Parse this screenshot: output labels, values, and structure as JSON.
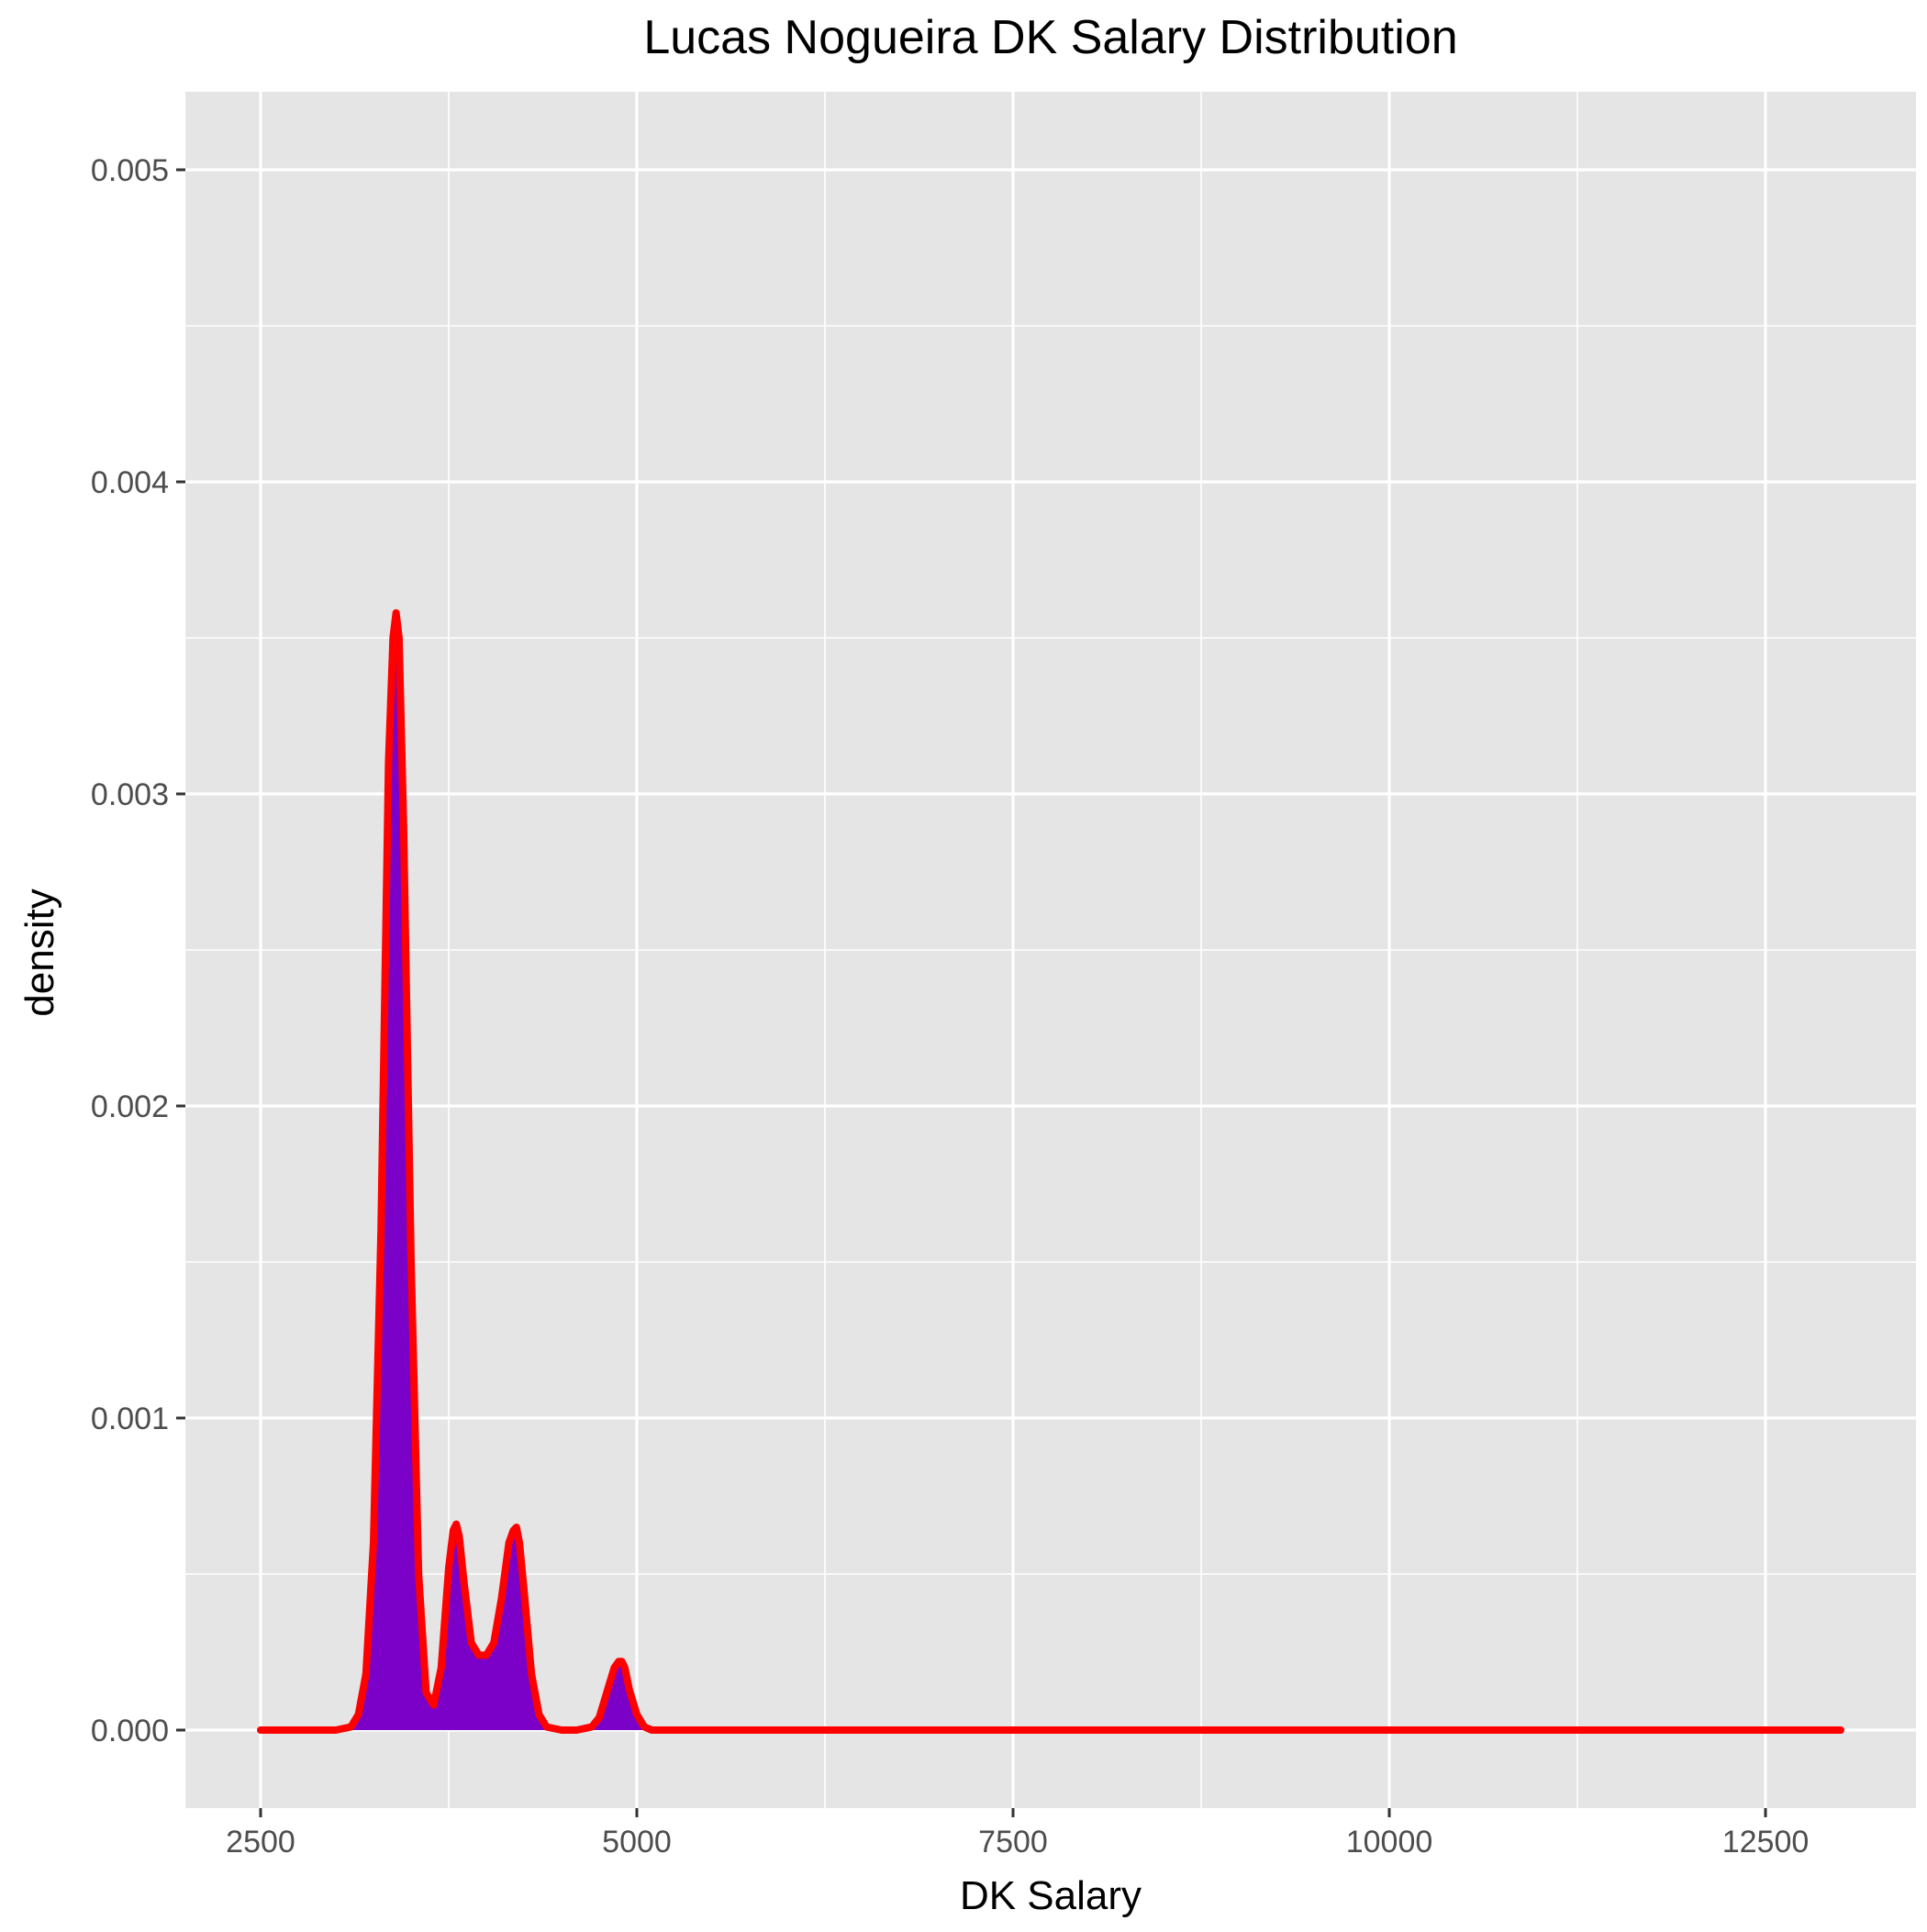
{
  "chart_data": {
    "type": "area",
    "title": "Lucas Nogueira DK Salary Distribution",
    "xlabel": "DK Salary",
    "ylabel": "density",
    "xlim": [
      2000,
      13500
    ],
    "ylim": [
      -0.00025,
      0.00525
    ],
    "x_ticks": [
      2500,
      5000,
      7500,
      10000,
      12500
    ],
    "x_tick_labels": [
      "2500",
      "5000",
      "7500",
      "10000",
      "12500"
    ],
    "y_ticks": [
      0.0,
      0.001,
      0.002,
      0.003,
      0.004,
      0.005
    ],
    "y_tick_labels": [
      "0.000",
      "0.001",
      "0.002",
      "0.003",
      "0.004",
      "0.005"
    ],
    "grid": true,
    "series": [
      {
        "x": [
          2500,
          3000,
          3100,
          3150,
          3200,
          3250,
          3300,
          3350,
          3380,
          3400,
          3420,
          3450,
          3500,
          3550,
          3600,
          3650,
          3700,
          3750,
          3780,
          3800,
          3820,
          3850,
          3900,
          3950,
          4000,
          4050,
          4100,
          4150,
          4180,
          4200,
          4220,
          4250,
          4300,
          4350,
          4400,
          4500,
          4600,
          4700,
          4750,
          4800,
          4850,
          4880,
          4900,
          4920,
          4950,
          5000,
          5050,
          5100,
          5200,
          6000,
          8000,
          10000,
          13000
        ],
        "y": [
          0,
          0,
          1e-05,
          5e-05,
          0.00018,
          0.0006,
          0.0016,
          0.0031,
          0.0035,
          0.00358,
          0.0035,
          0.0029,
          0.0015,
          0.0005,
          0.00012,
          8e-05,
          0.0002,
          0.00052,
          0.00064,
          0.00066,
          0.00062,
          0.00048,
          0.00028,
          0.00024,
          0.00024,
          0.00028,
          0.00042,
          0.0006,
          0.00064,
          0.00065,
          0.0006,
          0.00045,
          0.00018,
          5e-05,
          1e-05,
          0,
          0,
          1e-05,
          4e-05,
          0.00012,
          0.0002,
          0.00022,
          0.00022,
          0.0002,
          0.00013,
          5e-05,
          1e-05,
          0,
          0,
          0,
          0,
          0,
          0
        ]
      }
    ],
    "colors": {
      "panel_background": "#e5e5e5",
      "grid": "#ffffff",
      "fill": "#7b00c8",
      "line": "#ff0000",
      "text": "#000000",
      "tick_text": "#4d4d4d",
      "tick_mark": "#333333"
    }
  }
}
